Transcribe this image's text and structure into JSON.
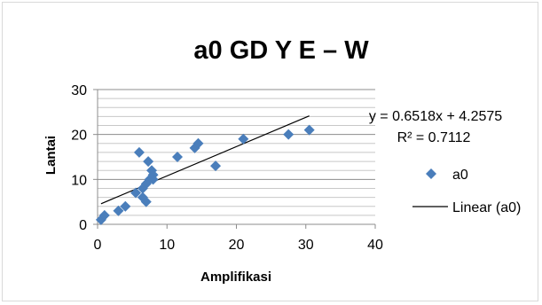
{
  "chart_data": {
    "type": "scatter",
    "title": "a0 GD Y E  –  W",
    "xlabel": "Amplifikasi",
    "ylabel": "Lantai",
    "xlim": [
      0,
      40
    ],
    "ylim": [
      0,
      30
    ],
    "x_ticks": [
      "0",
      "10",
      "20",
      "30",
      "40"
    ],
    "y_ticks": [
      "0",
      "10",
      "20",
      "30"
    ],
    "grid": "horizontal major and minor",
    "legend_position": "right",
    "series": [
      {
        "name": "a0",
        "marker": "diamond",
        "color": "#4a7ebb",
        "points": [
          {
            "x": 0.5,
            "y": 1
          },
          {
            "x": 1.0,
            "y": 2
          },
          {
            "x": 3.0,
            "y": 3
          },
          {
            "x": 4.0,
            "y": 4
          },
          {
            "x": 5.5,
            "y": 7
          },
          {
            "x": 6.0,
            "y": 16
          },
          {
            "x": 6.5,
            "y": 8
          },
          {
            "x": 6.5,
            "y": 6
          },
          {
            "x": 7.0,
            "y": 5
          },
          {
            "x": 7.0,
            "y": 9
          },
          {
            "x": 7.3,
            "y": 14
          },
          {
            "x": 7.5,
            "y": 10
          },
          {
            "x": 7.8,
            "y": 12
          },
          {
            "x": 8.0,
            "y": 11
          },
          {
            "x": 8.0,
            "y": 10
          },
          {
            "x": 11.5,
            "y": 15
          },
          {
            "x": 14.0,
            "y": 17
          },
          {
            "x": 14.5,
            "y": 18
          },
          {
            "x": 17.0,
            "y": 13
          },
          {
            "x": 21.0,
            "y": 19
          },
          {
            "x": 27.5,
            "y": 20
          },
          {
            "x": 30.5,
            "y": 21
          }
        ]
      }
    ],
    "trendline": {
      "name": "Linear (a0)",
      "slope": 0.6518,
      "intercept": 4.2575,
      "x_range": [
        0.5,
        30.5
      ],
      "color": "#000000",
      "equation_label": "y = 0.6518x + 4.2575",
      "r2_label": "R² = 0.7112"
    }
  }
}
